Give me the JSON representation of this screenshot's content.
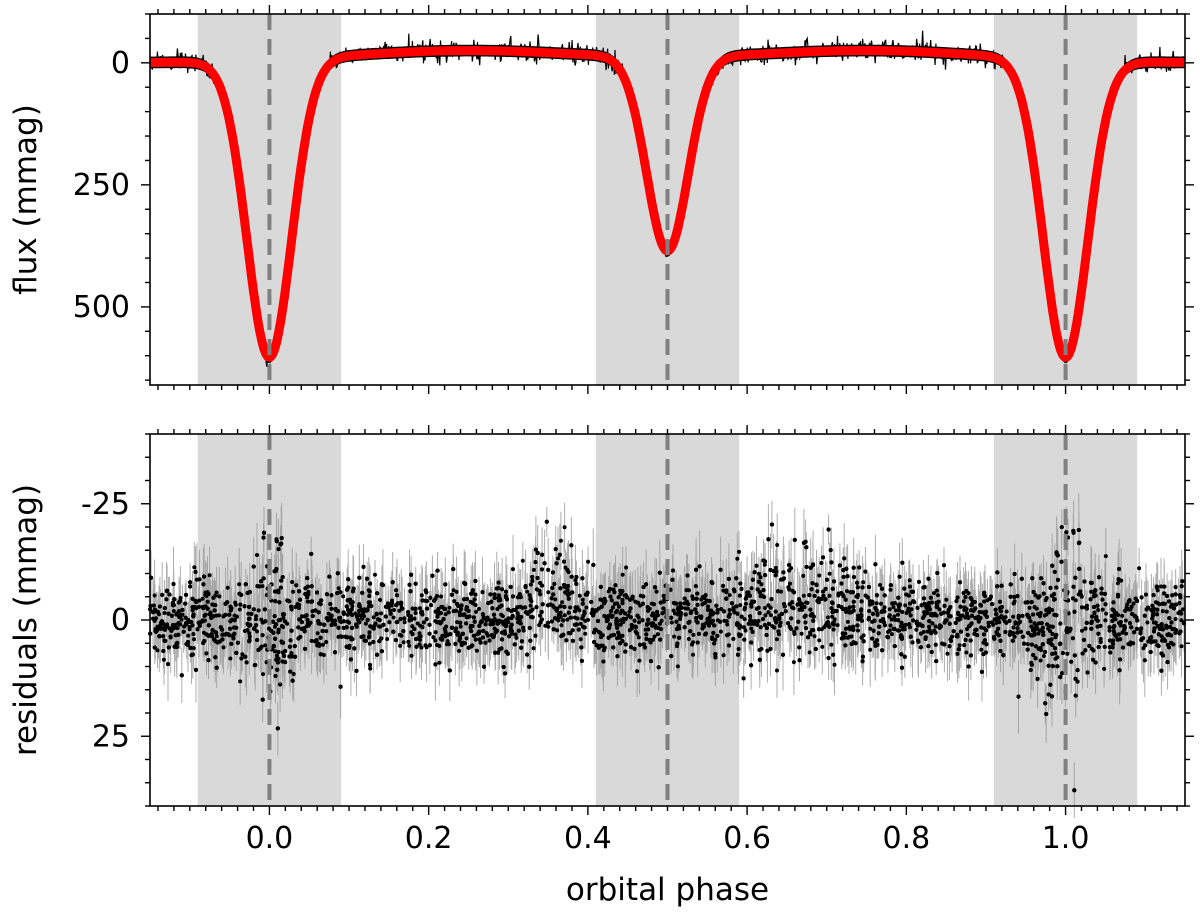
{
  "chart_data": [
    {
      "type": "line",
      "panel": "top",
      "xlabel": "",
      "ylabel": "flux (mmag)",
      "xlim": [
        -0.15,
        1.15
      ],
      "ylim": [
        660,
        -100
      ],
      "y_inverted": true,
      "y_ticks": [
        0,
        250,
        500
      ],
      "y_tick_labels": [
        "0",
        "250",
        "500"
      ],
      "x_ticks": [
        0.0,
        0.2,
        0.4,
        0.6,
        0.8,
        1.0
      ],
      "x_tick_labels_visible": false,
      "shaded_phase_ranges": [
        [
          -0.09,
          0.09
        ],
        [
          0.41,
          0.59
        ],
        [
          0.91,
          1.09
        ]
      ],
      "dashed_vlines": [
        0.0,
        0.5,
        1.0
      ],
      "minima": [
        {
          "phase": 0.0,
          "depth": 610,
          "width": 0.028
        },
        {
          "phase": 0.5,
          "depth": 398,
          "width": 0.026
        },
        {
          "phase": 1.0,
          "depth": 610,
          "width": 0.028
        }
      ],
      "baseline": {
        "max_brightening": -25,
        "brightening_centers": [
          0.25,
          0.75
        ],
        "brightening_width": 0.15
      },
      "series": [
        {
          "role": "observed",
          "color": "#000000",
          "scatter_mmag": 12
        },
        {
          "role": "model",
          "color": "#ff0000"
        }
      ],
      "colors": {
        "shade": "#d9d9d9",
        "dashed_line": "#808080",
        "model": "#ff0000",
        "data": "#000000"
      }
    },
    {
      "type": "scatter",
      "panel": "bottom",
      "xlabel": "orbital phase",
      "ylabel": "residuals (mmag)",
      "xlim": [
        -0.15,
        1.15
      ],
      "ylim": [
        40,
        -40
      ],
      "y_inverted": true,
      "y_ticks": [
        -25,
        0,
        25
      ],
      "y_tick_labels": [
        "-25",
        "0",
        "25"
      ],
      "x_ticks": [
        0.0,
        0.2,
        0.4,
        0.6,
        0.8,
        1.0
      ],
      "x_tick_labels": [
        "0.0",
        "0.2",
        "0.4",
        "0.6",
        "0.8",
        "1.0"
      ],
      "shaded_phase_ranges": [
        [
          -0.09,
          0.09
        ],
        [
          0.41,
          0.59
        ],
        [
          0.91,
          1.09
        ]
      ],
      "dashed_vlines": [
        0.0,
        0.5,
        1.0
      ],
      "noise_sigma_mmag": 4,
      "features": [
        {
          "kind": "spread",
          "center": 0.0,
          "width": 0.025,
          "amplitude": 10
        },
        {
          "kind": "spread",
          "center": 1.0,
          "width": 0.025,
          "amplitude": 10
        },
        {
          "kind": "bump",
          "center": 0.355,
          "width": 0.03,
          "amplitude": -18
        },
        {
          "kind": "bump",
          "center": 0.66,
          "width": 0.07,
          "amplitude": -14
        }
      ],
      "series": [
        {
          "role": "residuals",
          "color": "#000000"
        },
        {
          "role": "error_bars",
          "color": "#999999"
        }
      ],
      "colors": {
        "shade": "#d9d9d9",
        "dashed_line": "#808080",
        "points": "#000000",
        "errorbars": "#999999"
      }
    }
  ]
}
